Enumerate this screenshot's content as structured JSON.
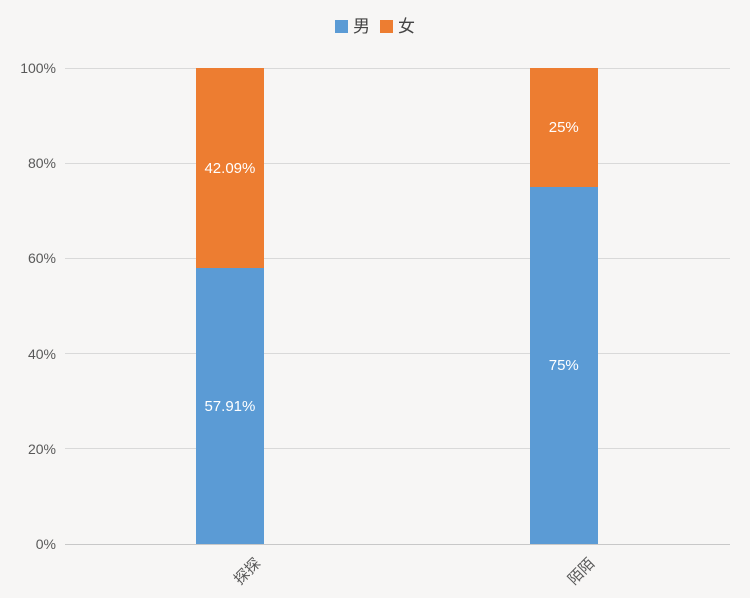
{
  "page": {
    "background": "#f7f6f5"
  },
  "chart_data": {
    "type": "bar",
    "stacked": true,
    "units": "percent",
    "title": "",
    "xlabel": "",
    "ylabel": "",
    "categories": [
      "探探",
      "陌陌"
    ],
    "series": [
      {
        "id": "male",
        "name": "男",
        "color": "#5b9bd5",
        "values": [
          57.91,
          75
        ],
        "data_labels": [
          "57.91%",
          "75%"
        ]
      },
      {
        "id": "female",
        "name": "女",
        "color": "#ed7d31",
        "values": [
          42.09,
          25
        ],
        "data_labels": [
          "42.09%",
          "25%"
        ]
      }
    ],
    "y_axis": {
      "min": 0,
      "max": 100,
      "step": 20,
      "tick_labels": [
        "0%",
        "20%",
        "40%",
        "60%",
        "80%",
        "100%"
      ]
    },
    "legend": {
      "position": "top",
      "entries": [
        "男",
        "女"
      ]
    },
    "grid": true,
    "grid_color": "#d9d9d9",
    "axis_text_color": "#595959",
    "data_label_color": "#ffffff",
    "category_label_rotation": -45,
    "bar_centers_percent": [
      24.8,
      75.0
    ]
  }
}
